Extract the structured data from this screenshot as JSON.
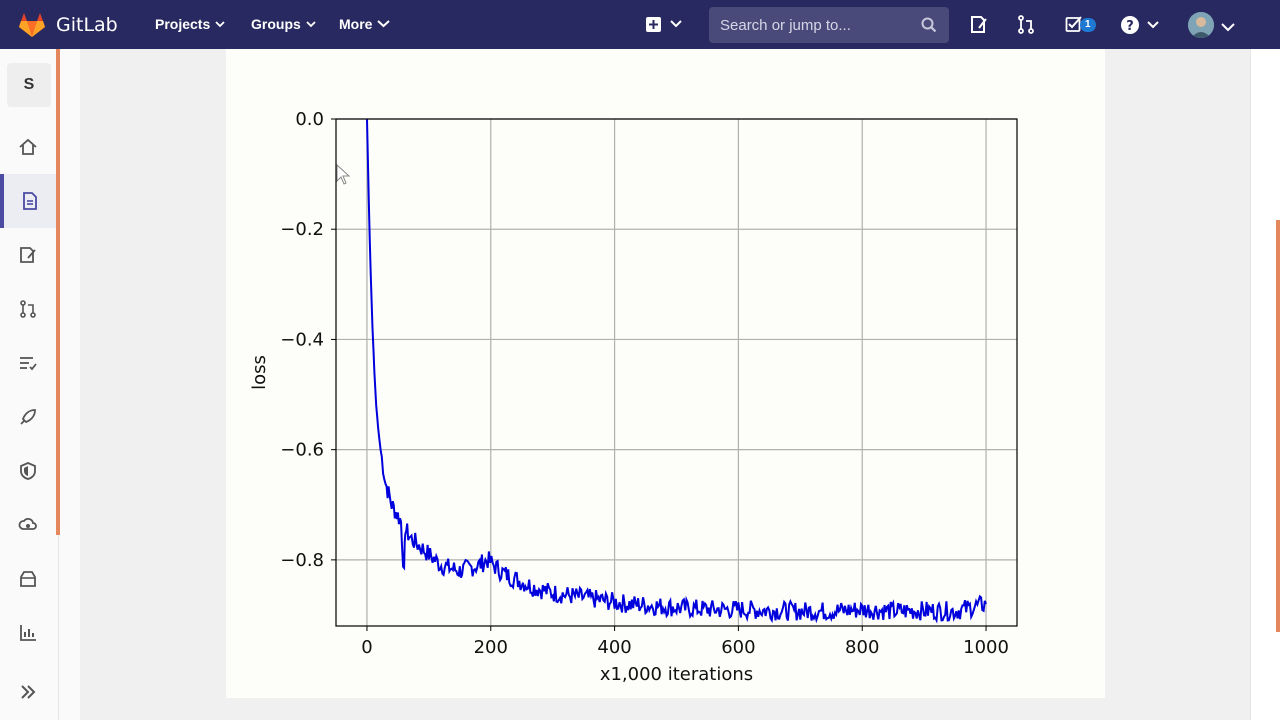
{
  "navbar": {
    "brand": "GitLab",
    "links": [
      {
        "label": "Projects"
      },
      {
        "label": "Groups"
      },
      {
        "label": "More"
      }
    ],
    "search_placeholder": "Search or jump to...",
    "todos_count": "1",
    "icons": [
      "plus-square-icon",
      "issues-icon",
      "merge-request-icon",
      "todo-icon",
      "help-icon",
      "avatar"
    ]
  },
  "sidebar": {
    "project_letter": "S",
    "items": [
      {
        "name": "home-icon"
      },
      {
        "name": "repository-icon",
        "active": true
      },
      {
        "name": "issues-icon"
      },
      {
        "name": "merge-requests-icon"
      },
      {
        "name": "ci-cd-icon"
      },
      {
        "name": "operations-icon"
      },
      {
        "name": "security-icon"
      },
      {
        "name": "deploy-icon"
      },
      {
        "name": "packages-icon"
      },
      {
        "name": "analytics-icon"
      },
      {
        "name": "expand-sidebar-icon"
      }
    ]
  },
  "colors": {
    "nav_bg": "#292961",
    "accent": "#e5875c",
    "line": "#0000dd",
    "active": "#4b4ba3"
  },
  "chart_data": {
    "type": "line",
    "xlabel": "x1,000 iterations",
    "ylabel": "loss",
    "xlim": [
      -50,
      1050
    ],
    "ylim": [
      -0.92,
      0.0
    ],
    "xticks": [
      0,
      200,
      400,
      600,
      800,
      1000
    ],
    "yticks": [
      0.0,
      -0.2,
      -0.4,
      -0.6,
      -0.8
    ],
    "xtick_labels": [
      "0",
      "200",
      "400",
      "600",
      "800",
      "1000"
    ],
    "ytick_labels": [
      "0.0",
      "−0.2",
      "−0.4",
      "−0.6",
      "−0.8"
    ],
    "grid": true,
    "series": [
      {
        "x": [
          0,
          3,
          6,
          9,
          12,
          15,
          18,
          22,
          26,
          30,
          35,
          40,
          45,
          50,
          55,
          60,
          62,
          65,
          70,
          80,
          90,
          100,
          110,
          120,
          135,
          150,
          165,
          180,
          195,
          205,
          215,
          230,
          250,
          270,
          300,
          330,
          360,
          390,
          420,
          450,
          480,
          520,
          560,
          600,
          650,
          700,
          750,
          800,
          850,
          900,
          950,
          1000
        ],
        "y": [
          0.0,
          -0.15,
          -0.28,
          -0.38,
          -0.46,
          -0.52,
          -0.56,
          -0.6,
          -0.63,
          -0.66,
          -0.68,
          -0.7,
          -0.71,
          -0.72,
          -0.73,
          -0.83,
          -0.74,
          -0.75,
          -0.76,
          -0.77,
          -0.78,
          -0.79,
          -0.8,
          -0.81,
          -0.815,
          -0.82,
          -0.815,
          -0.81,
          -0.8,
          -0.81,
          -0.82,
          -0.83,
          -0.84,
          -0.85,
          -0.86,
          -0.865,
          -0.87,
          -0.875,
          -0.88,
          -0.882,
          -0.885,
          -0.888,
          -0.89,
          -0.89,
          -0.892,
          -0.893,
          -0.893,
          -0.89,
          -0.893,
          -0.892,
          -0.893,
          -0.88
        ],
        "color": "#0000dd"
      }
    ]
  }
}
